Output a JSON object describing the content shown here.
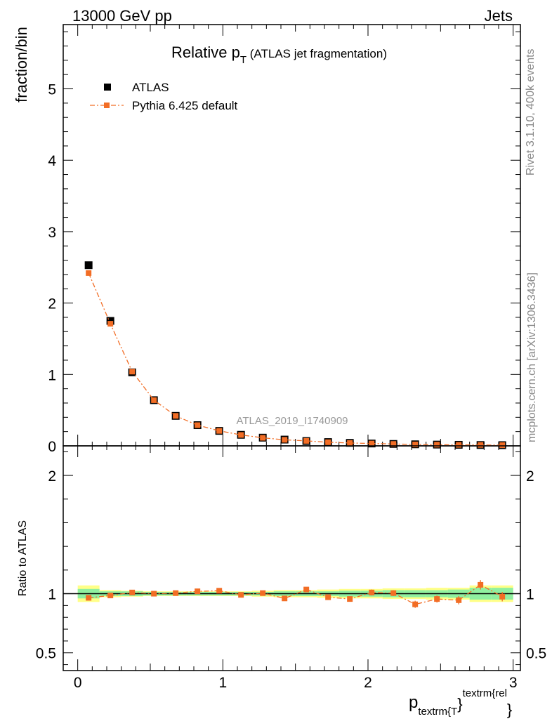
{
  "header": {
    "left": "13000 GeV pp",
    "right": "Jets"
  },
  "chart_data": [
    {
      "type": "scatter",
      "title_main": "Relative p",
      "title_sub": "T",
      "title_rest": " (ATLAS jet fragmentation)",
      "ylabel": "fraction/bin",
      "xlim": [
        -0.1,
        3.05
      ],
      "ylim": [
        0,
        5.9
      ],
      "yticks": [
        0,
        1,
        2,
        3,
        4,
        5
      ],
      "ytick_labels": [
        "0",
        "1",
        "2",
        "3",
        "4",
        "5"
      ],
      "legend": [
        "ATLAS",
        "Pythia 6.425 default"
      ],
      "watermark": "ATLAS_2019_I1740909",
      "x": [
        0.075,
        0.225,
        0.375,
        0.525,
        0.675,
        0.825,
        0.975,
        1.125,
        1.275,
        1.425,
        1.575,
        1.725,
        1.875,
        2.025,
        2.175,
        2.325,
        2.475,
        2.625,
        2.775,
        2.925
      ],
      "series": [
        {
          "name": "ATLAS",
          "color": "#000000",
          "values": [
            2.53,
            1.75,
            1.03,
            0.64,
            0.42,
            0.29,
            0.21,
            0.155,
            0.115,
            0.088,
            0.068,
            0.053,
            0.042,
            0.033,
            0.027,
            0.022,
            0.018,
            0.015,
            0.012,
            0.01
          ]
        },
        {
          "name": "Pythia 6.425 default",
          "color": "#f26d25",
          "values": [
            2.42,
            1.71,
            1.04,
            0.64,
            0.42,
            0.29,
            0.21,
            0.153,
            0.113,
            0.085,
            0.07,
            0.051,
            0.04,
            0.033,
            0.027,
            0.02,
            0.017,
            0.014,
            0.013,
            0.01
          ]
        }
      ]
    },
    {
      "type": "scatter",
      "ylabel": "Ratio to ATLAS",
      "xlabel_main": "p",
      "xlabel_sub": "textrm{T",
      "xlabel_brace": "}",
      "xlabel_sup": "textrm{rel",
      "xlabel_end": "}",
      "xlim": [
        -0.1,
        3.05
      ],
      "ylim": [
        0.35,
        2.25
      ],
      "xticks": [
        0,
        1,
        2,
        3
      ],
      "xtick_labels": [
        "0",
        "1",
        "2",
        "3"
      ],
      "yticks": [
        0.5,
        1,
        2
      ],
      "ytick_labels": [
        "0.5",
        "1",
        "2"
      ],
      "x": [
        0.075,
        0.225,
        0.375,
        0.525,
        0.675,
        0.825,
        0.975,
        1.125,
        1.275,
        1.425,
        1.575,
        1.725,
        1.875,
        2.025,
        2.175,
        2.325,
        2.475,
        2.625,
        2.775,
        2.925
      ],
      "ratio": [
        0.965,
        0.985,
        1.01,
        1.0,
        1.005,
        1.02,
        1.025,
        0.99,
        1.005,
        0.96,
        1.035,
        0.97,
        0.955,
        1.01,
        1.005,
        0.91,
        0.955,
        0.945,
        1.075,
        0.975
      ],
      "ratio_err": [
        0.01,
        0.01,
        0.01,
        0.01,
        0.01,
        0.012,
        0.012,
        0.012,
        0.012,
        0.012,
        0.015,
        0.015,
        0.02,
        0.025,
        0.025,
        0.03,
        0.03,
        0.035,
        0.04,
        0.04
      ],
      "band_inner": [
        0.04,
        0.02,
        0.02,
        0.015,
        0.015,
        0.015,
        0.015,
        0.015,
        0.015,
        0.02,
        0.02,
        0.02,
        0.025,
        0.025,
        0.03,
        0.03,
        0.03,
        0.035,
        0.05,
        0.05
      ],
      "band_outer": [
        0.07,
        0.03,
        0.025,
        0.02,
        0.02,
        0.02,
        0.02,
        0.02,
        0.025,
        0.03,
        0.03,
        0.035,
        0.04,
        0.04,
        0.045,
        0.045,
        0.05,
        0.05,
        0.07,
        0.07
      ],
      "colors": {
        "band_inner": "#90f0a0",
        "band_outer": "#ffff88",
        "mc": "#f26d25",
        "ref": "#000000"
      }
    }
  ],
  "side_text": {
    "rivet": "Rivet 3.1.10,  400k events",
    "mcplots": "mcplots.cern.ch [arXiv:1306.3436]"
  }
}
